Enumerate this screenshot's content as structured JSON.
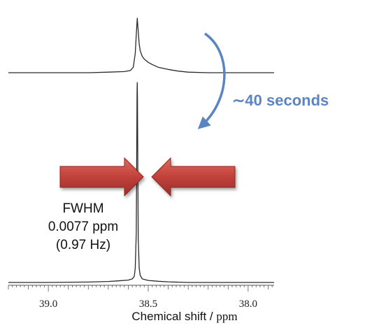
{
  "chart_data": {
    "type": "line",
    "title": "",
    "xlabel": "Chemical shift",
    "xlabel_unit": "ppm",
    "xlabel_separator": " / ",
    "x_reversed": true,
    "xlim": [
      39.2,
      37.87
    ],
    "tick_labels": [
      "39.0",
      "38.5",
      "38.0"
    ],
    "tick_values": [
      39.0,
      38.5,
      38.0
    ],
    "series": [
      {
        "x": [
          39.2,
          38.8,
          38.7,
          38.62,
          38.59,
          38.575,
          38.565,
          38.56,
          38.555,
          38.55,
          38.545,
          38.54,
          38.53,
          38.52,
          38.5,
          38.48,
          38.45,
          38.4,
          38.35,
          38.3,
          38.2,
          37.87
        ],
        "y": [
          0.0,
          0.0,
          0.01,
          0.02,
          0.04,
          0.1,
          0.35,
          0.7,
          1.0,
          0.75,
          0.52,
          0.4,
          0.3,
          0.25,
          0.19,
          0.15,
          0.1,
          0.06,
          0.03,
          0.01,
          0.0,
          0.0
        ]
      },
      {
        "x": [
          39.2,
          39.0,
          38.8,
          38.7,
          38.65,
          38.6,
          38.58,
          38.57,
          38.565,
          38.56,
          38.557,
          38.556,
          38.555,
          38.554,
          38.553,
          38.55,
          38.545,
          38.54,
          38.53,
          38.5,
          38.45,
          38.4,
          38.3,
          38.0,
          37.87
        ],
        "y": [
          0.0,
          0.0,
          0.002,
          0.005,
          0.008,
          0.012,
          0.018,
          0.03,
          0.07,
          0.25,
          0.75,
          0.95,
          1.0,
          0.92,
          0.7,
          0.22,
          0.07,
          0.035,
          0.018,
          0.01,
          0.006,
          0.003,
          0.0,
          0.0,
          0.0
        ]
      }
    ],
    "annotations": {
      "time_label": "∼40 seconds",
      "fwhm_lines": [
        "FWHM",
        "0.0077 ppm",
        "(0.97 Hz)"
      ]
    },
    "colors": {
      "trace": "#2a2a2a",
      "annotation": "#5b84c0",
      "arrow_fill": "#c0413b",
      "arrow_edge": "#8f2622"
    },
    "grid": false,
    "legend": "none"
  }
}
